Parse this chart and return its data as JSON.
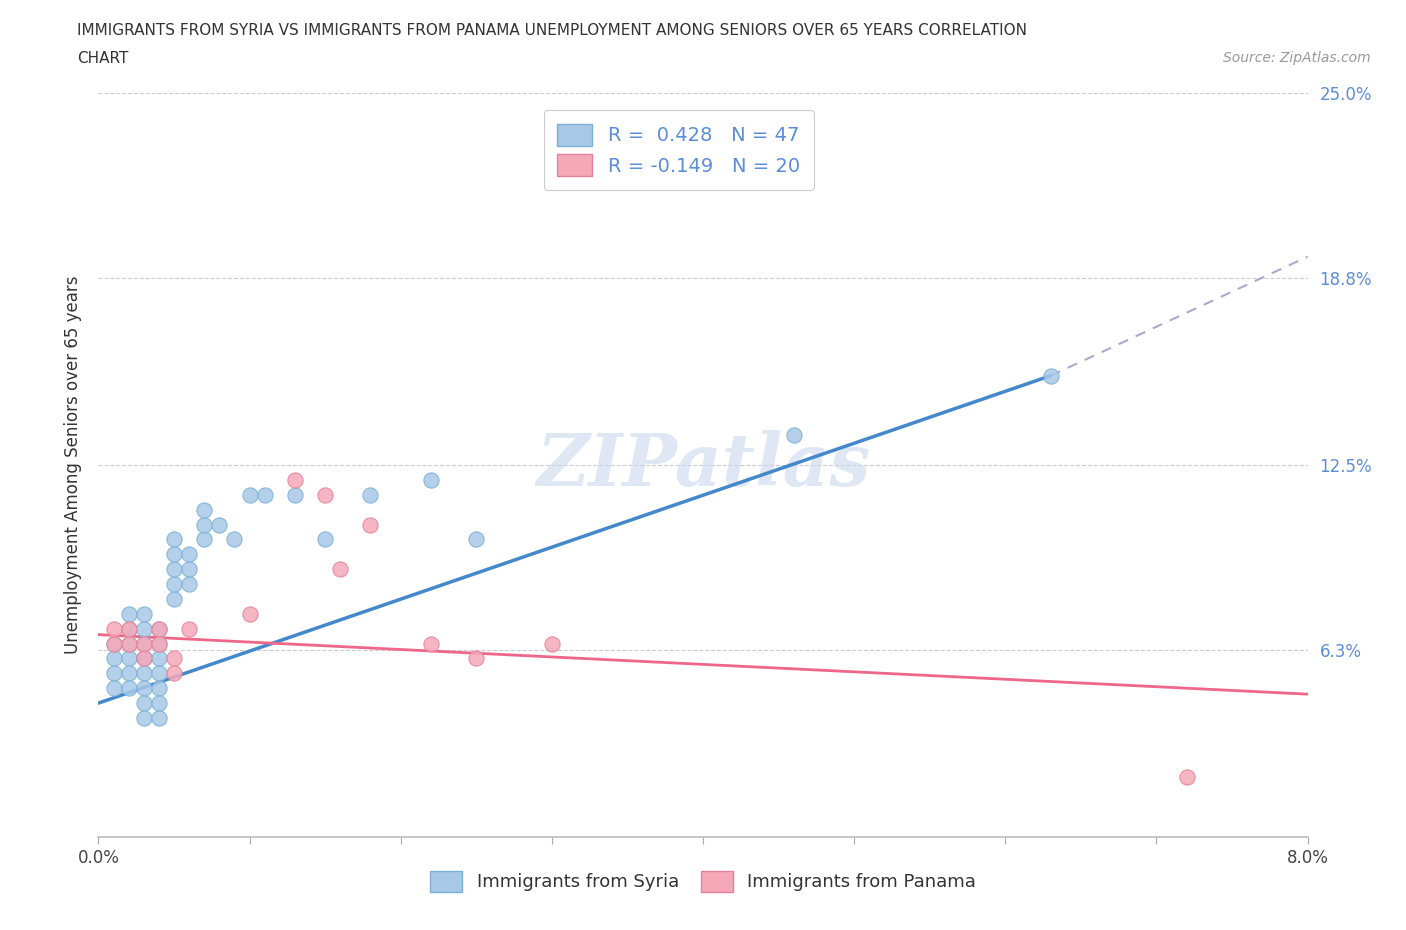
{
  "title_line1": "IMMIGRANTS FROM SYRIA VS IMMIGRANTS FROM PANAMA UNEMPLOYMENT AMONG SENIORS OVER 65 YEARS CORRELATION",
  "title_line2": "CHART",
  "source": "Source: ZipAtlas.com",
  "ylabel": "Unemployment Among Seniors over 65 years",
  "xlim": [
    0.0,
    0.08
  ],
  "ylim": [
    0.0,
    0.25
  ],
  "ytick_positions": [
    0.0,
    0.063,
    0.125,
    0.188,
    0.25
  ],
  "ytick_labels": [
    "",
    "6.3%",
    "12.5%",
    "18.8%",
    "25.0%"
  ],
  "xtick_positions": [
    0.0,
    0.01,
    0.02,
    0.03,
    0.04,
    0.05,
    0.06,
    0.07,
    0.08
  ],
  "xtick_labels": [
    "0.0%",
    "",
    "",
    "",
    "",
    "",
    "",
    "",
    "8.0%"
  ],
  "legend_r_syria": "R =  0.428   N = 47",
  "legend_r_panama": "R = -0.149   N = 20",
  "legend_label_syria": "Immigrants from Syria",
  "legend_label_panama": "Immigrants from Panama",
  "color_syria": "#a8c8e8",
  "color_panama": "#f4a8b8",
  "color_syria_border": "#7ab0d4",
  "color_panama_border": "#e88098",
  "color_trendline_syria": "#4488cc",
  "color_trendline_panama": "#ee6688",
  "color_trendline_dashed": "#aaaacc",
  "watermark_color": "#ccd8ee",
  "grid_color": "#cccccc",
  "syria_x": [
    0.001,
    0.001,
    0.001,
    0.001,
    0.002,
    0.002,
    0.002,
    0.002,
    0.002,
    0.002,
    0.003,
    0.003,
    0.003,
    0.003,
    0.003,
    0.003,
    0.003,
    0.003,
    0.004,
    0.004,
    0.004,
    0.004,
    0.004,
    0.004,
    0.004,
    0.005,
    0.005,
    0.005,
    0.005,
    0.005,
    0.006,
    0.006,
    0.006,
    0.007,
    0.007,
    0.007,
    0.008,
    0.009,
    0.01,
    0.011,
    0.013,
    0.015,
    0.018,
    0.022,
    0.025,
    0.046,
    0.063
  ],
  "syria_y": [
    0.055,
    0.06,
    0.065,
    0.05,
    0.06,
    0.065,
    0.07,
    0.075,
    0.055,
    0.05,
    0.065,
    0.07,
    0.075,
    0.06,
    0.055,
    0.05,
    0.045,
    0.04,
    0.06,
    0.065,
    0.07,
    0.055,
    0.05,
    0.045,
    0.04,
    0.08,
    0.085,
    0.09,
    0.095,
    0.1,
    0.085,
    0.09,
    0.095,
    0.1,
    0.105,
    0.11,
    0.105,
    0.1,
    0.115,
    0.115,
    0.115,
    0.1,
    0.115,
    0.12,
    0.1,
    0.135,
    0.155
  ],
  "panama_x": [
    0.001,
    0.001,
    0.002,
    0.002,
    0.003,
    0.003,
    0.004,
    0.004,
    0.005,
    0.005,
    0.006,
    0.01,
    0.013,
    0.015,
    0.016,
    0.018,
    0.022,
    0.025,
    0.03,
    0.072
  ],
  "panama_y": [
    0.065,
    0.07,
    0.07,
    0.065,
    0.065,
    0.06,
    0.07,
    0.065,
    0.06,
    0.055,
    0.07,
    0.075,
    0.12,
    0.115,
    0.09,
    0.105,
    0.065,
    0.06,
    0.065,
    0.02
  ],
  "syria_trendline_x0": 0.0,
  "syria_trendline_y0": 0.045,
  "syria_trendline_x1": 0.063,
  "syria_trendline_y1": 0.155,
  "syria_trendline_dashed_x1": 0.08,
  "syria_trendline_dashed_y1": 0.195,
  "panama_trendline_x0": 0.0,
  "panama_trendline_y0": 0.068,
  "panama_trendline_x1": 0.08,
  "panama_trendline_y1": 0.048
}
